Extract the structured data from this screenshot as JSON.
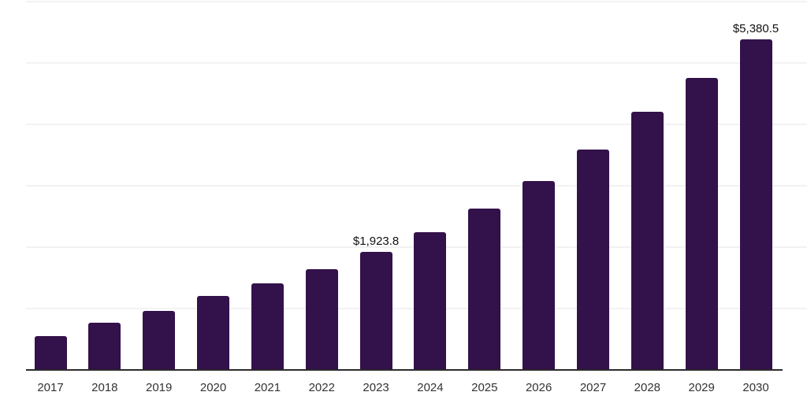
{
  "chart_data": {
    "type": "bar",
    "title": "",
    "xlabel": "",
    "ylabel": "",
    "categories": [
      "2017",
      "2018",
      "2019",
      "2020",
      "2021",
      "2022",
      "2023",
      "2024",
      "2025",
      "2026",
      "2027",
      "2028",
      "2029",
      "2030"
    ],
    "values": [
      550,
      765,
      960,
      1200,
      1405,
      1635,
      1923.8,
      2248,
      2630,
      3078,
      3585,
      4200,
      4755,
      5380.5
    ],
    "labeled_points": [
      {
        "category": "2023",
        "label": "$1,923.8"
      },
      {
        "category": "2030",
        "label": "$5,380.5"
      }
    ],
    "ylim": [
      0,
      6000
    ],
    "gridline_interval": 1000,
    "grid": "horizontal-only",
    "legend": "none",
    "colors": {
      "bar": "#33114a",
      "axis": "#2b2b2b",
      "gridline": "#f2f2f2",
      "value_label_text": "#111111",
      "tick_text": "#333333",
      "background": "#ffffff"
    }
  }
}
